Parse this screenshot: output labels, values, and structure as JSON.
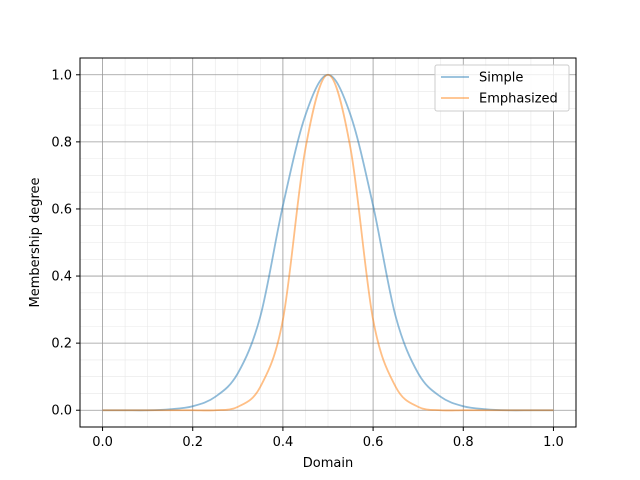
{
  "chart_data": {
    "type": "line",
    "xlabel": "Domain",
    "ylabel": "Membership degree",
    "xlim": [
      -0.05,
      1.05
    ],
    "ylim": [
      -0.05,
      1.05
    ],
    "xticks": [
      "0.0",
      "0.2",
      "0.4",
      "0.6",
      "0.8",
      "1.0"
    ],
    "yticks": [
      "0.0",
      "0.2",
      "0.4",
      "0.6",
      "0.8",
      "1.0"
    ],
    "grid": true,
    "minor_grid": true,
    "legend_position": "top-right",
    "x": [
      0.0,
      0.05,
      0.1,
      0.15,
      0.2,
      0.25,
      0.3,
      0.35,
      0.4,
      0.45,
      0.5,
      0.55,
      0.6,
      0.65,
      0.7,
      0.75,
      0.8,
      0.85,
      0.9,
      0.95,
      1.0
    ],
    "series": [
      {
        "name": "Simple",
        "color": "#1f77b4",
        "values": [
          0.0,
          0.0,
          0.0,
          0.003,
          0.012,
          0.04,
          0.11,
          0.28,
          0.61,
          0.88,
          1.0,
          0.88,
          0.61,
          0.28,
          0.11,
          0.04,
          0.012,
          0.003,
          0.0,
          0.0,
          0.0
        ]
      },
      {
        "name": "Emphasized",
        "color": "#ff7f0e",
        "values": [
          0.0,
          0.0,
          0.0,
          0.0,
          0.0,
          0.0,
          0.01,
          0.07,
          0.27,
          0.78,
          1.0,
          0.78,
          0.27,
          0.07,
          0.01,
          0.0,
          0.0,
          0.0,
          0.0,
          0.0,
          0.0
        ]
      }
    ]
  }
}
